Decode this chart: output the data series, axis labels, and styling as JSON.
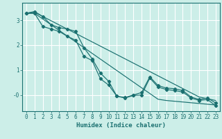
{
  "xlabel": "Humidex (Indice chaleur)",
  "bg_color": "#cceee8",
  "grid_color": "#ffffff",
  "line_color": "#1a7070",
  "x_values": [
    0,
    1,
    2,
    3,
    4,
    5,
    6,
    7,
    8,
    9,
    10,
    11,
    12,
    13,
    14,
    15,
    16,
    17,
    18,
    19,
    20,
    21,
    22,
    23
  ],
  "line_straight1": [
    3.28,
    3.28,
    3.05,
    2.82,
    2.59,
    2.36,
    2.13,
    1.9,
    1.67,
    1.44,
    1.21,
    0.98,
    0.75,
    0.52,
    0.29,
    0.06,
    -0.17,
    -0.22,
    -0.25,
    -0.28,
    -0.31,
    -0.34,
    -0.37,
    -0.4
  ],
  "line_straight2": [
    3.28,
    3.32,
    3.15,
    2.98,
    2.81,
    2.64,
    2.47,
    2.3,
    2.13,
    1.96,
    1.79,
    1.62,
    1.45,
    1.28,
    1.11,
    0.94,
    0.77,
    0.6,
    0.43,
    0.26,
    0.09,
    -0.08,
    -0.15,
    -0.22
  ],
  "line_marker1_x": [
    0,
    1,
    2,
    3,
    4,
    5,
    6,
    7,
    8,
    9,
    10,
    11,
    12,
    13,
    14,
    15,
    16,
    17,
    18,
    19,
    20,
    21,
    22,
    23
  ],
  "line_marker1": [
    3.28,
    3.35,
    3.15,
    2.82,
    2.7,
    2.65,
    2.55,
    1.9,
    1.45,
    0.88,
    0.55,
    -0.05,
    -0.1,
    0.0,
    0.1,
    0.73,
    0.38,
    0.28,
    0.25,
    0.18,
    -0.08,
    -0.18,
    -0.12,
    -0.32
  ],
  "line_marker2_x": [
    0,
    1,
    2,
    3,
    4,
    5,
    6,
    7,
    8,
    9,
    10,
    11,
    12,
    13,
    14,
    15,
    16,
    17,
    18,
    19,
    20,
    21,
    22,
    23
  ],
  "line_marker2": [
    3.28,
    3.28,
    2.75,
    2.65,
    2.55,
    2.35,
    2.2,
    1.55,
    1.38,
    0.65,
    0.4,
    -0.05,
    -0.12,
    -0.02,
    0.0,
    0.68,
    0.32,
    0.22,
    0.18,
    0.12,
    -0.12,
    -0.22,
    -0.18,
    -0.43
  ],
  "ylim": [
    -0.65,
    3.7
  ],
  "xlim": [
    -0.5,
    23.5
  ],
  "yticks": [
    0,
    1,
    2,
    3
  ],
  "ytick_labels": [
    "-0",
    "1",
    "2",
    "3"
  ],
  "xticks": [
    0,
    1,
    2,
    3,
    4,
    5,
    6,
    7,
    8,
    9,
    10,
    11,
    12,
    13,
    14,
    15,
    16,
    17,
    18,
    19,
    20,
    21,
    22,
    23
  ],
  "xlabel_fontsize": 6.5,
  "tick_fontsize": 5.5
}
